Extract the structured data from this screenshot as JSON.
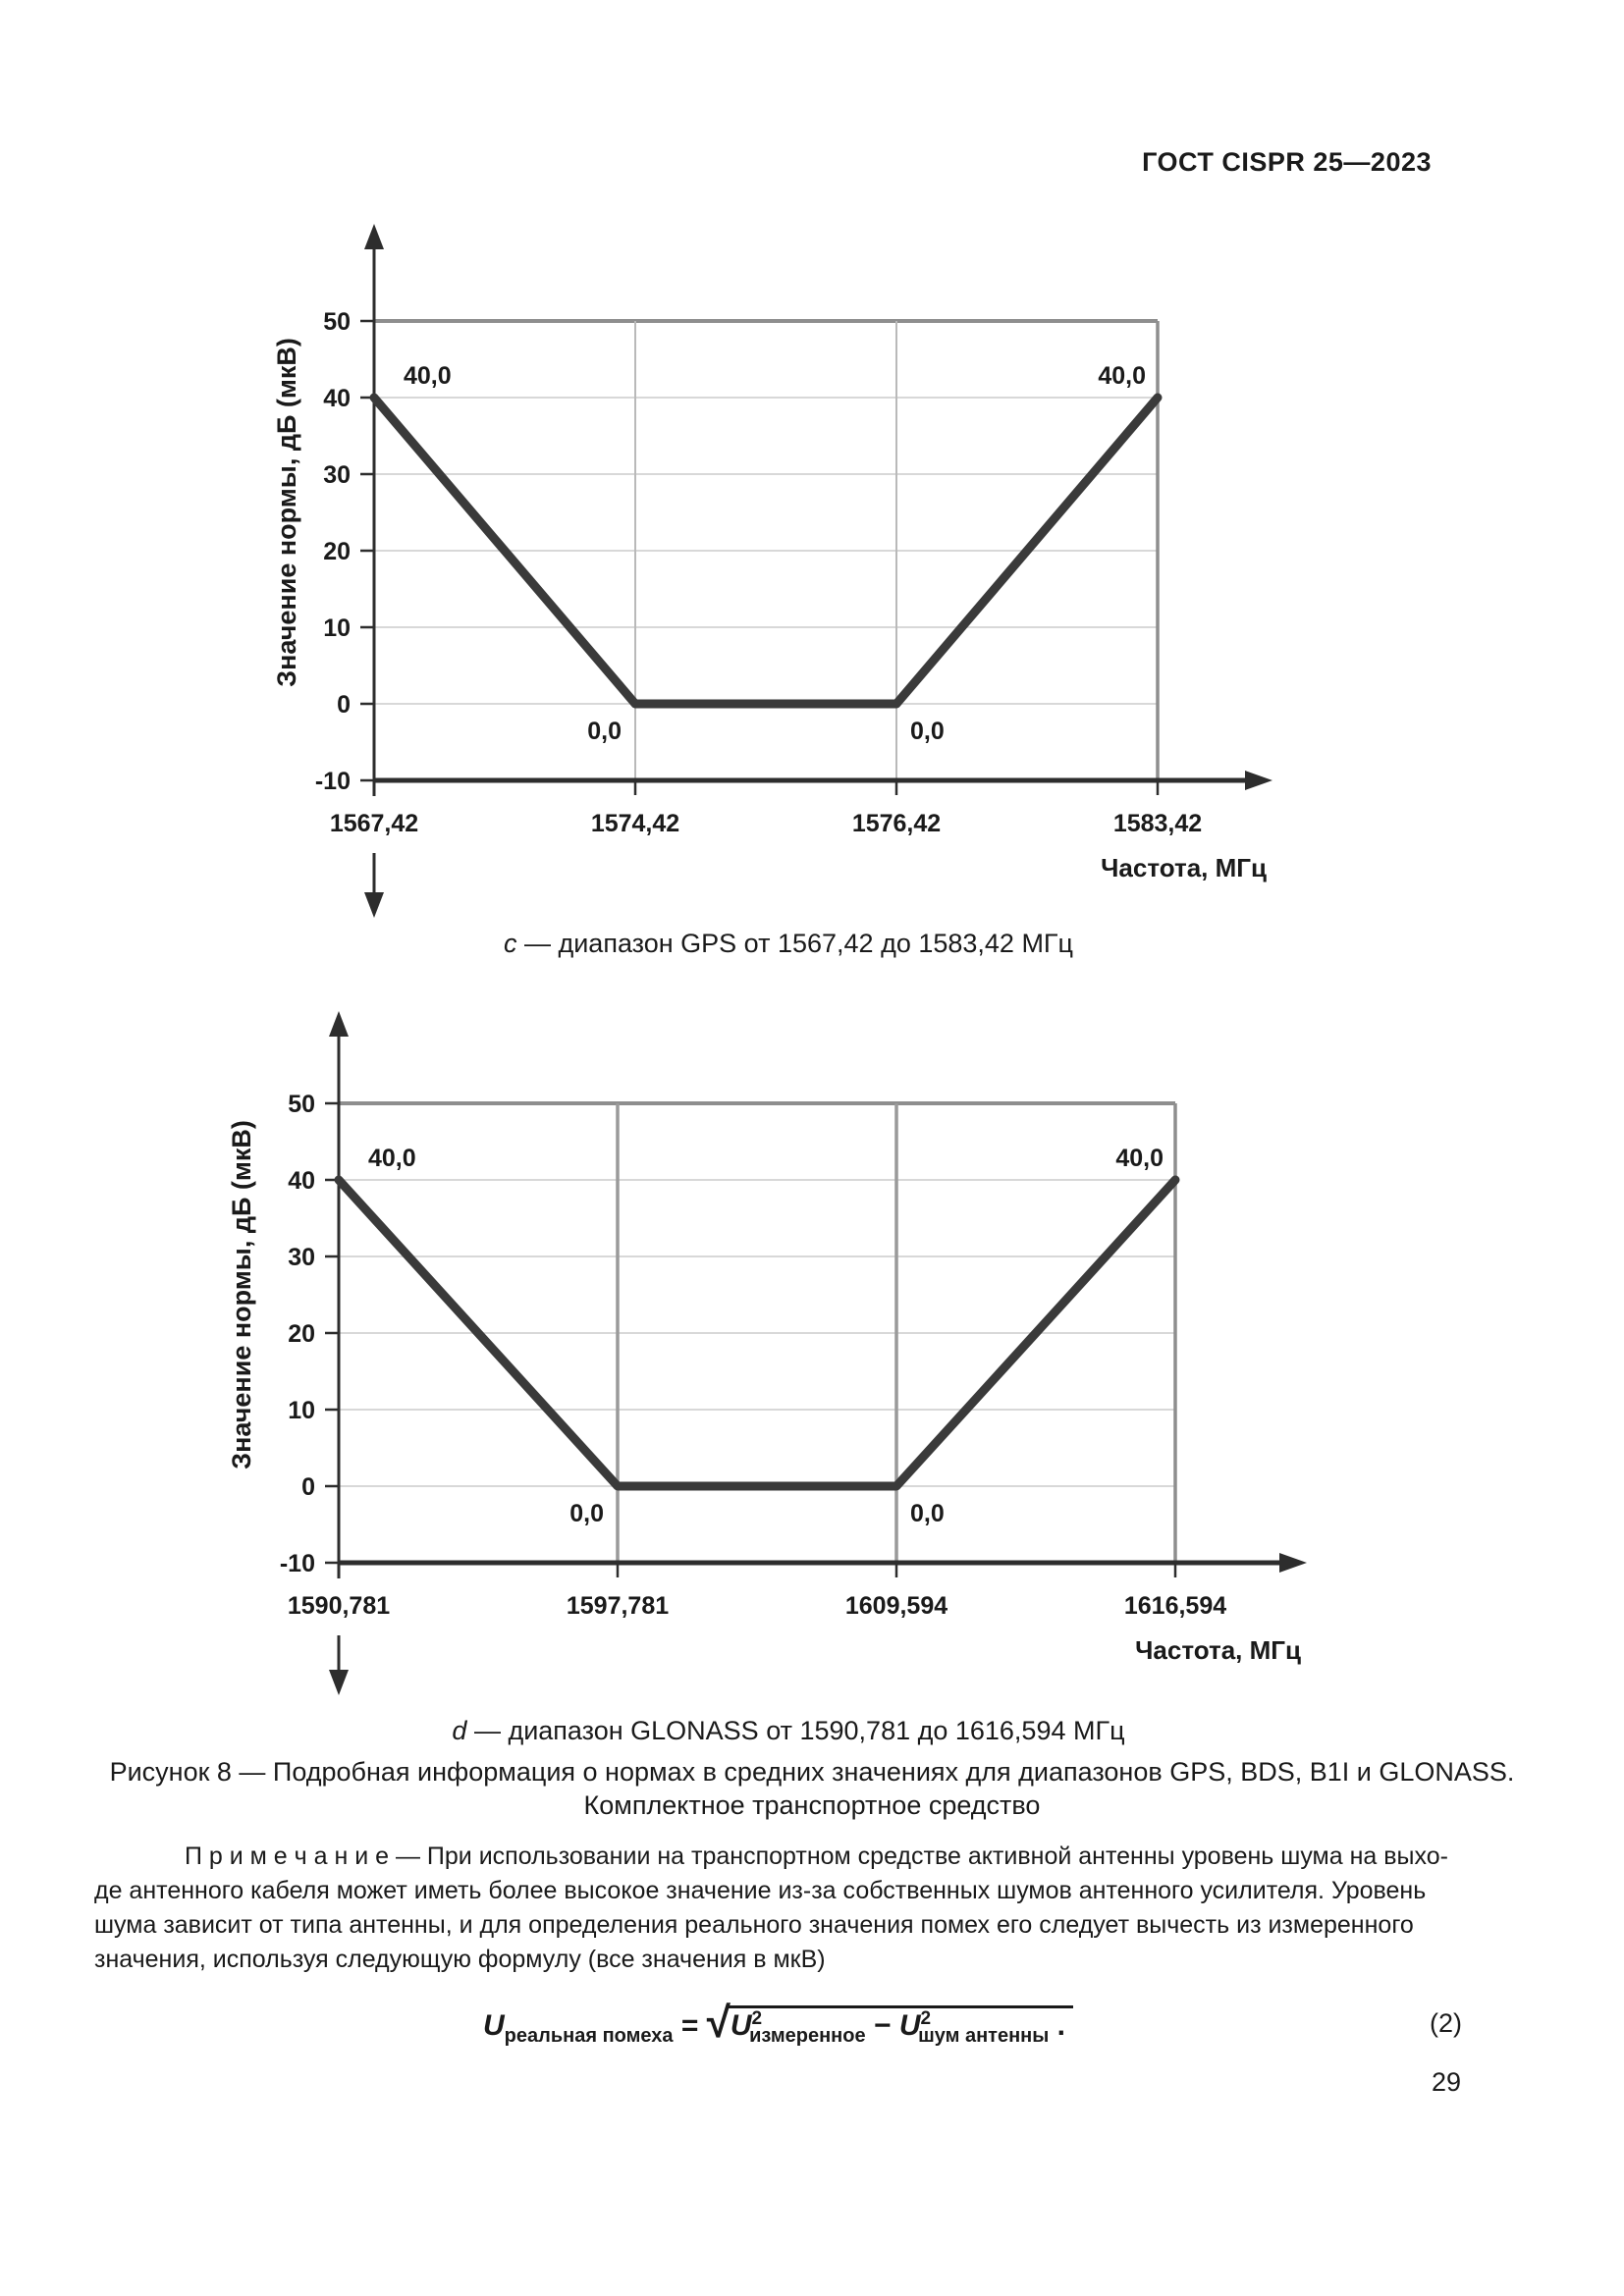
{
  "header": {
    "title": "ГОСТ CISPR 25—2023"
  },
  "chart_data": [
    {
      "type": "line",
      "title": "Норма в средних значениях, диапазон GPS",
      "x": [
        1567.42,
        1574.42,
        1576.42,
        1583.42
      ],
      "x_tick_labels": [
        "1567,42",
        "1574,42",
        "1576,42",
        "1583,42"
      ],
      "y": [
        40,
        0,
        0,
        40
      ],
      "point_labels": [
        "40,0",
        "0,0",
        "0,0",
        "40,0"
      ],
      "y_ticks": [
        50,
        40,
        30,
        20,
        10,
        0,
        -10
      ],
      "y_tick_labels": [
        "50",
        "40",
        "30",
        "20",
        "10",
        "0",
        "-10"
      ],
      "ylim": [
        -10,
        50
      ],
      "xlabel": "Частота, МГц",
      "ylabel": "Значение нормы, дБ (мкВ)",
      "grid": "on",
      "x_spacing": "equal",
      "line_color": "#3a3a3a",
      "caption": {
        "prefix_italic": "c",
        "text": " — диапазон GPS от 1567,42 до 1583,42 МГц"
      }
    },
    {
      "type": "line",
      "title": "Норма в средних значениях, диапазон GLONASS",
      "x": [
        1590.781,
        1597.781,
        1609.594,
        1616.594
      ],
      "x_tick_labels": [
        "1590,781",
        "1597,781",
        "1609,594",
        "1616,594"
      ],
      "y": [
        40,
        0,
        0,
        40
      ],
      "point_labels": [
        "40,0",
        "0,0",
        "0,0",
        "40,0"
      ],
      "y_ticks": [
        50,
        40,
        30,
        20,
        10,
        0,
        -10
      ],
      "y_tick_labels": [
        "50",
        "40",
        "30",
        "20",
        "10",
        "0",
        "-10"
      ],
      "ylim": [
        -10,
        50
      ],
      "xlabel": "Частота, МГц",
      "ylabel": "Значение нормы, дБ (мкВ)",
      "grid": "on",
      "x_spacing": "equal",
      "line_color": "#3a3a3a",
      "caption": {
        "prefix_italic": "d",
        "text": " — диапазон GLONASS от 1590,781 до 1616,594 МГц"
      }
    }
  ],
  "figure_caption": {
    "line1": "Рисунок 8 — Подробная информация о нормах в средних значениях для диапазонов GPS, BDS, B1I и GLONASS.",
    "line2": "Комплектное транспортное средство"
  },
  "note": {
    "lines": [
      "П р и м е ч а н и е  — При использовании на транспортном средстве активной антенны уровень шума на выхо-",
      "де антенного кабеля может иметь более высокое значение из-за собственных шумов антенного усилителя. Уровень",
      "шума зависит от типа антенны, и для определения реального значения помех его следует вычесть из измеренного",
      "значения, используя следующую формулу (все значения в мкВ)"
    ]
  },
  "formula": {
    "lhs_base": "U",
    "lhs_sub": "реальная помеха",
    "equals": " = ",
    "rad1_base": "U",
    "rad1_sup": "2",
    "rad1_sub": "измеренное",
    "minus": " − ",
    "rad2_base": "U",
    "rad2_sup": "2",
    "rad2_sub": "шум антенны",
    "period": " .",
    "number": "(2)"
  },
  "page_number": "29"
}
